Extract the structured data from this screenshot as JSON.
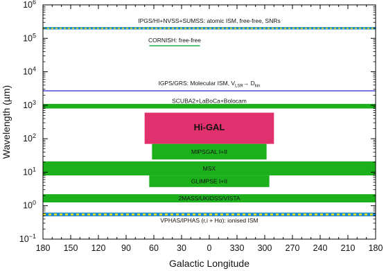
{
  "chart_data": {
    "type": "bar",
    "xlabel": "Galactic Longitude",
    "ylabel": "Wavelength (µm)",
    "x_tick_labels": [
      "180",
      "150",
      "120",
      "90",
      "60",
      "30",
      "0",
      "330",
      "300",
      "270",
      "240",
      "210",
      "180"
    ],
    "y_scale": "log",
    "ylim": [
      0.1,
      1000000
    ],
    "y_tick_labels": [
      {
        "base": "10",
        "exp": "−1"
      },
      {
        "base": "10",
        "exp": "0"
      },
      {
        "base": "10",
        "exp": "1"
      },
      {
        "base": "10",
        "exp": "2"
      },
      {
        "base": "10",
        "exp": "3"
      },
      {
        "base": "10",
        "exp": "4"
      },
      {
        "base": "10",
        "exp": "5"
      },
      {
        "base": "10",
        "exp": "6"
      }
    ],
    "grid": false,
    "surveys": [
      {
        "name": "IPGS/HI+NVSS+SUMSS: atomic ISM, free-free, SNRs",
        "style": "dashed-line",
        "l_start": 180,
        "l_end": -180,
        "wavelength": 200000,
        "color": "#1a8ad4",
        "color2": "#d8d820"
      },
      {
        "name": "CORNISH: free-free",
        "style": "line",
        "l_start": 65,
        "l_end": 10,
        "wavelength": 60000,
        "color": "#22b14c"
      },
      {
        "name": "IGPS/GRS: Molecular ISM, V",
        "name_sub1": "LSR",
        "name_arrow": "→",
        "name_mid": " D",
        "name_sub2": "kin",
        "style": "line",
        "l_start": 180,
        "l_end": -180,
        "wavelength": 2700,
        "color": "#5555dd"
      },
      {
        "name": "SCUBA2+LaBoCa+Bolocam",
        "style": "thin-band",
        "l_start": 180,
        "l_end": -180,
        "wavelength_min": 800,
        "wavelength_max": 1100,
        "color": "#1db01d",
        "label_wavelength": 1350
      },
      {
        "name": "Hi-GAL",
        "style": "box",
        "l_start": 70,
        "l_end": -70,
        "wavelength_min": 70,
        "wavelength_max": 600,
        "color": "#e0306e"
      },
      {
        "name": "MIPSGAL I+II",
        "style": "box",
        "l_start": 62,
        "l_end": -62,
        "wavelength_min": 24,
        "wavelength_max": 70,
        "color": "#1db01d"
      },
      {
        "name": "MSX",
        "style": "box",
        "l_start": 180,
        "l_end": -180,
        "wavelength_min": 8,
        "wavelength_max": 21,
        "color": "#1db01d"
      },
      {
        "name": "GLIMPSE I+II",
        "style": "box",
        "l_start": 65,
        "l_end": -65,
        "wavelength_min": 3.6,
        "wavelength_max": 8,
        "color": "#1db01d"
      },
      {
        "name": "2MASS/UKIDSS/VISTA",
        "style": "box",
        "l_start": 180,
        "l_end": -180,
        "wavelength_min": 1.25,
        "wavelength_max": 2.2,
        "color": "#1db01d"
      },
      {
        "name": "VPHAS/IPHAS (r,i + Hα): ionised ISM",
        "style": "dashed-band",
        "l_start": 180,
        "l_end": -180,
        "wavelength_min": 0.48,
        "wavelength_max": 0.62,
        "color": "#1a8ad4",
        "color2": "#d8d820",
        "label_wavelength": 0.36
      }
    ]
  }
}
